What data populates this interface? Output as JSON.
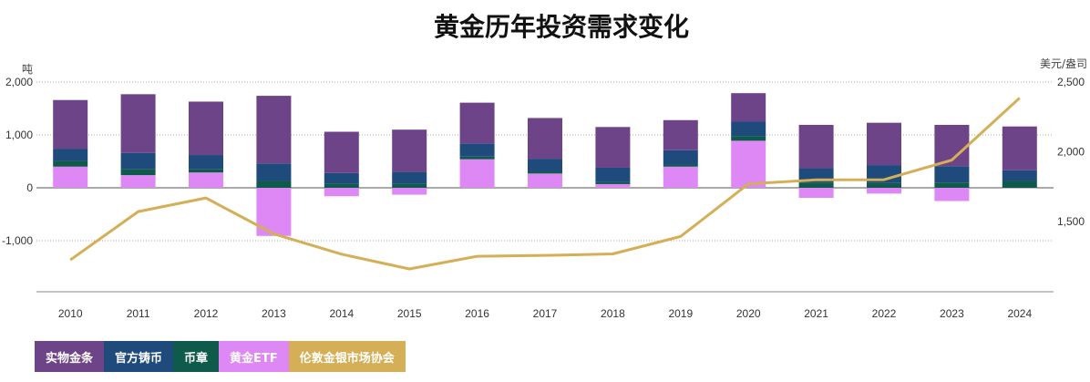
{
  "chart_data": {
    "type": "bar",
    "title": "黄金历年投资需求变化",
    "y_left_unit": "吨",
    "y_right_unit": "美元/盎司",
    "ylim_left": [
      -2000,
      2000
    ],
    "yticks_left": [
      "2,000",
      "1,000",
      "0",
      "-1,000"
    ],
    "ylim_right": [
      1000,
      2500
    ],
    "yticks_right": [
      "2,500",
      "2,000",
      "1,500"
    ],
    "categories": [
      "2010",
      "2011",
      "2012",
      "2013",
      "2014",
      "2015",
      "2016",
      "2017",
      "2018",
      "2019",
      "2020",
      "2021",
      "2022",
      "2023",
      "2024"
    ],
    "series": [
      {
        "name": "黄金ETF",
        "color": "#dd88f5",
        "axis": "left",
        "kind": "bar",
        "values": [
          400,
          240,
          290,
          -910,
          -160,
          -130,
          540,
          270,
          70,
          400,
          890,
          -190,
          -110,
          -250,
          -5
        ]
      },
      {
        "name": "币章",
        "color": "#0e5a4b",
        "axis": "left",
        "kind": "bar",
        "values": [
          110,
          110,
          60,
          130,
          80,
          80,
          50,
          40,
          40,
          40,
          90,
          100,
          90,
          100,
          130
        ]
      },
      {
        "name": "官方铸币",
        "color": "#1f4b7c",
        "axis": "left",
        "kind": "bar",
        "values": [
          230,
          310,
          270,
          330,
          200,
          220,
          250,
          240,
          270,
          270,
          270,
          270,
          340,
          310,
          200
        ]
      },
      {
        "name": "实物金条",
        "color": "#6e4488",
        "axis": "left",
        "kind": "bar",
        "values": [
          920,
          1110,
          1010,
          1280,
          780,
          800,
          770,
          770,
          770,
          570,
          540,
          820,
          800,
          780,
          830
        ]
      },
      {
        "name": "伦敦金银市场协会",
        "color": "#d4af55",
        "axis": "right",
        "kind": "line",
        "values": [
          1225,
          1571,
          1669,
          1411,
          1266,
          1160,
          1251,
          1257,
          1268,
          1393,
          1770,
          1799,
          1800,
          1941,
          2386
        ]
      }
    ],
    "grid": true,
    "legend_position": "bottom-left"
  }
}
